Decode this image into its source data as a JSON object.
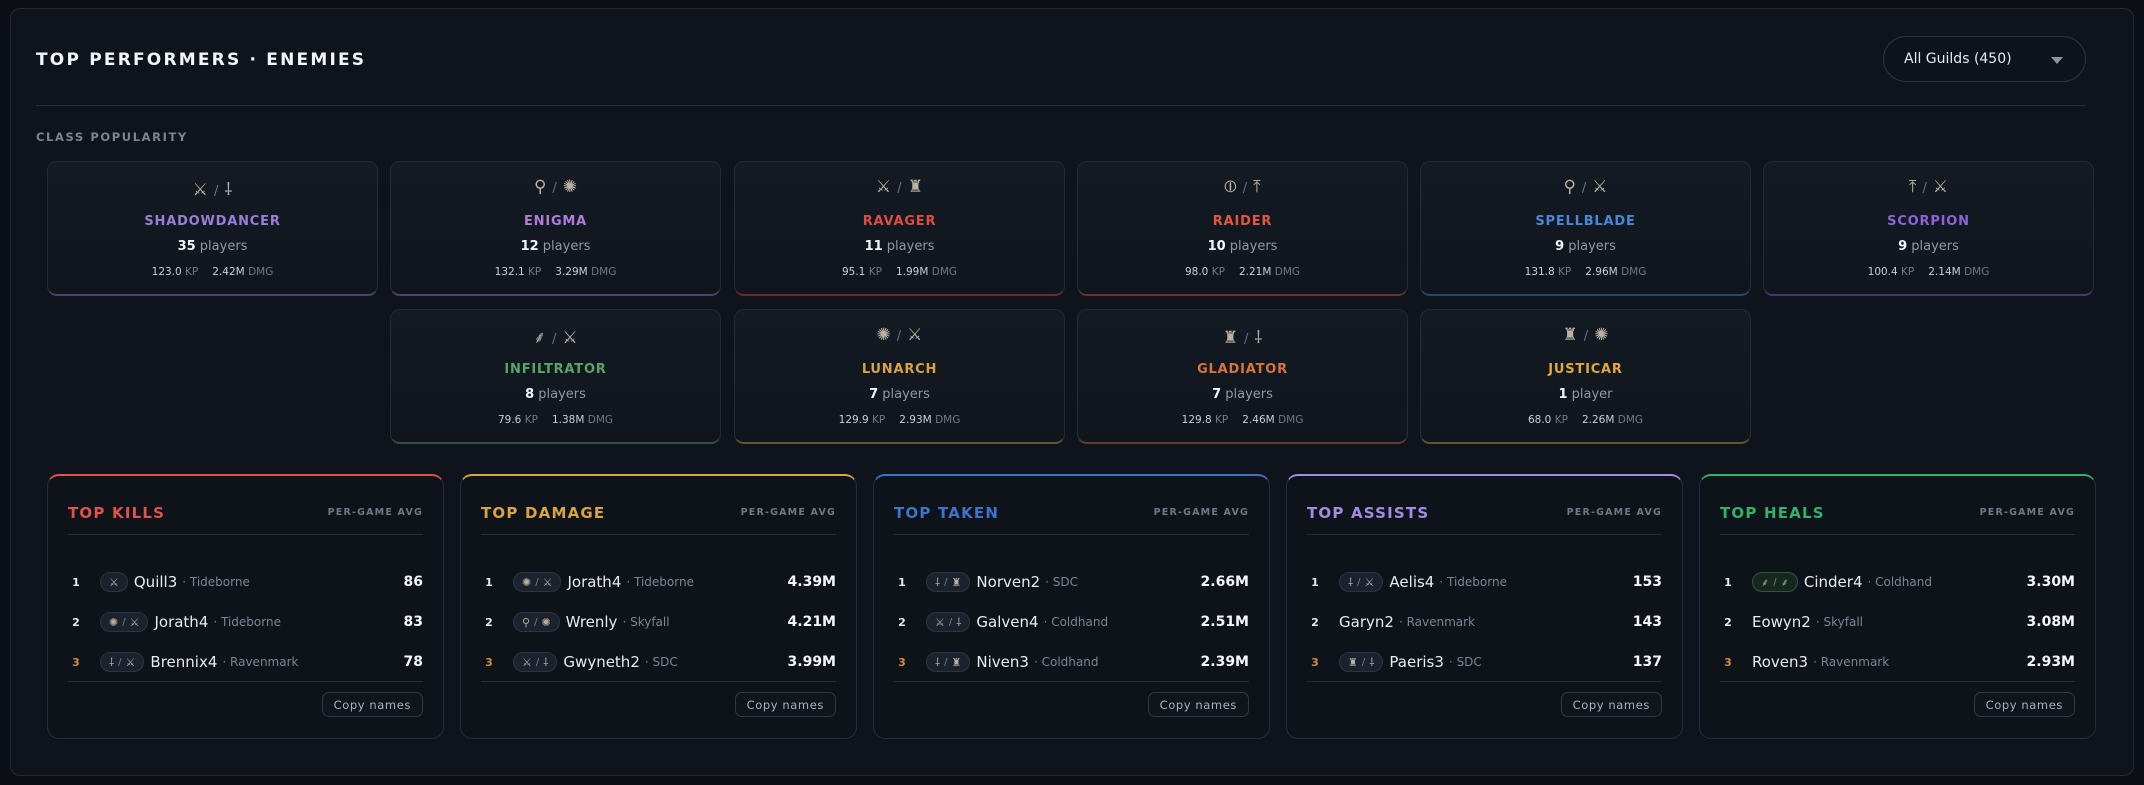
{
  "header": {
    "title": "TOP PERFORMERS · ENEMIES",
    "guild_filter": "All Guilds (450)"
  },
  "class_popularity": {
    "label": "CLASS POPULARITY",
    "classes": [
      {
        "name": "SHADOWDANCER",
        "color": "#9b7fd6",
        "count": "35",
        "unit": "players",
        "kp": "123.0",
        "dmg": "2.42M",
        "icons": [
          "⚔",
          "⸸"
        ],
        "icon_names": [
          "crossed-swords-icon",
          "trident-icon"
        ]
      },
      {
        "name": "ENIGMA",
        "color": "#b07cd9",
        "count": "12",
        "unit": "players",
        "kp": "132.1",
        "dmg": "3.29M",
        "icons": [
          "⚲",
          "✺"
        ],
        "icon_names": [
          "staff-icon",
          "orb-icon"
        ]
      },
      {
        "name": "RAVAGER",
        "color": "#e04b44",
        "count": "11",
        "unit": "players",
        "kp": "95.1",
        "dmg": "1.99M",
        "icons": [
          "⚔",
          "♜"
        ],
        "icon_names": [
          "crossed-swords-icon",
          "tower-icon"
        ]
      },
      {
        "name": "RAIDER",
        "color": "#e5573d",
        "count": "10",
        "unit": "players",
        "kp": "98.0",
        "dmg": "2.21M",
        "icons": [
          "⦶",
          "⤒"
        ],
        "icon_names": [
          "shield-icon",
          "crossbow-icon"
        ]
      },
      {
        "name": "SPELLBLADE",
        "color": "#4b86d9",
        "count": "9",
        "unit": "players",
        "kp": "131.8",
        "dmg": "2.96M",
        "icons": [
          "⚲",
          "⚔"
        ],
        "icon_names": [
          "staff-icon",
          "crossed-swords-icon"
        ]
      },
      {
        "name": "SCORPION",
        "color": "#8e63d8",
        "count": "9",
        "unit": "players",
        "kp": "100.4",
        "dmg": "2.14M",
        "icons": [
          "⤒",
          "⚔"
        ],
        "icon_names": [
          "crossbow-icon",
          "crossed-swords-icon"
        ]
      },
      {
        "name": "INFILTRATOR",
        "color": "#5aa468",
        "count": "8",
        "unit": "players",
        "kp": "79.6",
        "dmg": "1.38M",
        "icons": [
          "⸙",
          "⚔"
        ],
        "icon_names": [
          "bow-icon",
          "crossed-swords-icon"
        ]
      },
      {
        "name": "LUNARCH",
        "color": "#d9a441",
        "count": "7",
        "unit": "players",
        "kp": "129.9",
        "dmg": "2.93M",
        "icons": [
          "✺",
          "⚔"
        ],
        "icon_names": [
          "orb-icon",
          "crossed-swords-icon"
        ]
      },
      {
        "name": "GLADIATOR",
        "color": "#d9743f",
        "count": "7",
        "unit": "players",
        "kp": "129.8",
        "dmg": "2.46M",
        "icons": [
          "♜",
          "⸸"
        ],
        "icon_names": [
          "tower-icon",
          "trident-icon"
        ]
      },
      {
        "name": "JUSTICAR",
        "color": "#e0a93a",
        "count": "1",
        "unit": "player",
        "kp": "68.0",
        "dmg": "2.26M",
        "icons": [
          "♜",
          "✺"
        ],
        "icon_names": [
          "tower-icon",
          "orb-icon"
        ]
      }
    ],
    "kp_unit": "KP",
    "dmg_unit": "DMG"
  },
  "leaderboards": [
    {
      "title": "TOP KILLS",
      "color": "#e0534a",
      "per_game": "PER-GAME AVG",
      "copy_label": "Copy names",
      "rows": [
        {
          "rank": "1",
          "icons": [
            "⚔"
          ],
          "name": "Quill3",
          "guild": "Tideborne",
          "value": "86"
        },
        {
          "rank": "2",
          "icons": [
            "✺",
            "⚔"
          ],
          "name": "Jorath4",
          "guild": "Tideborne",
          "value": "83"
        },
        {
          "rank": "3",
          "icons": [
            "⸸",
            "⚔"
          ],
          "name": "Brennix4",
          "guild": "Ravenmark",
          "value": "78"
        }
      ]
    },
    {
      "title": "TOP DAMAGE",
      "color": "#d9a441",
      "per_game": "PER-GAME AVG",
      "copy_label": "Copy names",
      "rows": [
        {
          "rank": "1",
          "icons": [
            "✺",
            "⚔"
          ],
          "name": "Jorath4",
          "guild": "Tideborne",
          "value": "4.39M"
        },
        {
          "rank": "2",
          "icons": [
            "⚲",
            "✺"
          ],
          "name": "Wrenly",
          "guild": "Skyfall",
          "value": "4.21M"
        },
        {
          "rank": "3",
          "icons": [
            "⚔",
            "⸸"
          ],
          "name": "Gwyneth2",
          "guild": "SDC",
          "value": "3.99M"
        }
      ]
    },
    {
      "title": "TOP TAKEN",
      "color": "#3f72c9",
      "per_game": "PER-GAME AVG",
      "copy_label": "Copy names",
      "rows": [
        {
          "rank": "1",
          "icons": [
            "⸸",
            "♜"
          ],
          "name": "Norven2",
          "guild": "SDC",
          "value": "2.66M"
        },
        {
          "rank": "2",
          "icons": [
            "⚔",
            "⸸"
          ],
          "name": "Galven4",
          "guild": "Coldhand",
          "value": "2.51M"
        },
        {
          "rank": "3",
          "icons": [
            "⸸",
            "♜"
          ],
          "name": "Niven3",
          "guild": "Coldhand",
          "value": "2.39M"
        }
      ]
    },
    {
      "title": "TOP ASSISTS",
      "color": "#a48be6",
      "per_game": "PER-GAME AVG",
      "copy_label": "Copy names",
      "rows": [
        {
          "rank": "1",
          "icons": [
            "⸸",
            "⚔"
          ],
          "name": "Aelis4",
          "guild": "Tideborne",
          "value": "153"
        },
        {
          "rank": "2",
          "icons": [],
          "name": "Garyn2",
          "guild": "Ravenmark",
          "value": "143"
        },
        {
          "rank": "3",
          "icons": [
            "♜",
            "⸸"
          ],
          "name": "Paeris3",
          "guild": "SDC",
          "value": "137"
        }
      ]
    },
    {
      "title": "TOP HEALS",
      "color": "#2fb36a",
      "per_game": "PER-GAME AVG",
      "copy_label": "Copy names",
      "rows": [
        {
          "rank": "1",
          "icons": [
            "⸙",
            "⸙"
          ],
          "name": "Cinder4",
          "guild": "Coldhand",
          "value": "3.30M"
        },
        {
          "rank": "2",
          "icons": [],
          "name": "Eowyn2",
          "guild": "Skyfall",
          "value": "3.08M"
        },
        {
          "rank": "3",
          "icons": [],
          "name": "Roven3",
          "guild": "Ravenmark",
          "value": "2.93M"
        }
      ]
    }
  ]
}
